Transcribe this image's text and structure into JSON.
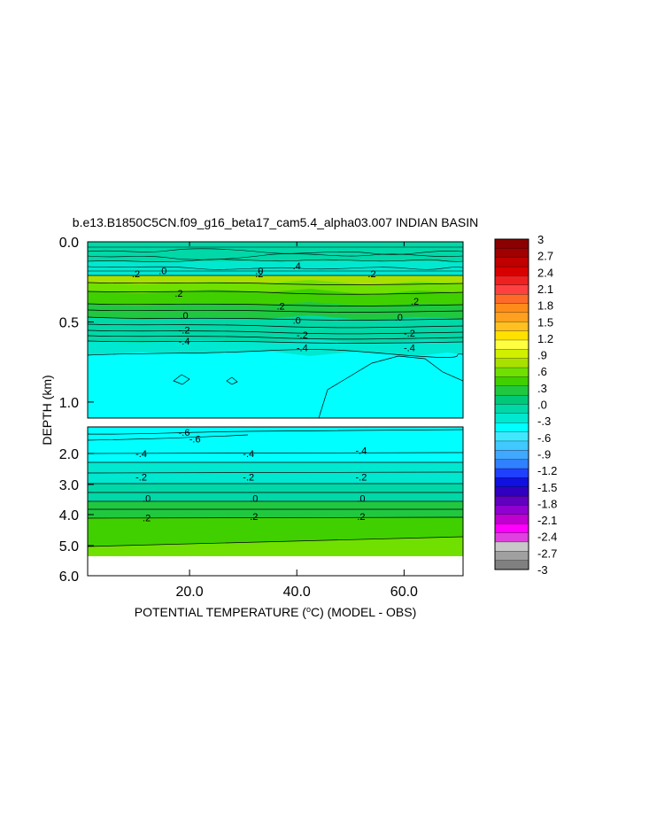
{
  "chart_data": {
    "type": "contour",
    "title": "b.e13.B1850C5CN.f09_g16_beta17_cam5.4_alpha03.007 INDIAN BASIN",
    "xlabel_main": "POTENTIAL TEMPERATURE (",
    "xlabel_sup": "o",
    "xlabel_rest": "C) (MODEL - OBS)",
    "ylabel": "DEPTH (km)",
    "xlim": [
      1,
      71
    ],
    "x_ticks": [
      "20.0",
      "40.0",
      "60.0"
    ],
    "x_tick_values": [
      20,
      40,
      60
    ],
    "upper_panel": {
      "depth_range": [
        0.0,
        1.1
      ],
      "y_ticks": [
        "0.0",
        "0.5",
        "1.0"
      ],
      "y_tick_values": [
        0.0,
        0.5,
        1.0
      ]
    },
    "lower_panel": {
      "depth_range": [
        1.1,
        6.0
      ],
      "y_ticks": [
        "2.0",
        "3.0",
        "4.0",
        "5.0",
        "6.0"
      ],
      "y_tick_values": [
        2.0,
        3.0,
        4.0,
        5.0,
        6.0
      ]
    },
    "contour_labels": [
      {
        "text": ".2",
        "x": 10,
        "depth": 0.2,
        "panel": "upper"
      },
      {
        "text": ".0",
        "x": 15,
        "depth": 0.18,
        "panel": "upper"
      },
      {
        "text": ".2",
        "x": 33,
        "depth": 0.2,
        "panel": "upper"
      },
      {
        "text": ".0",
        "x": 33,
        "depth": 0.18,
        "panel": "upper"
      },
      {
        "text": ".4",
        "x": 40,
        "depth": 0.15,
        "panel": "upper"
      },
      {
        "text": ".2",
        "x": 54,
        "depth": 0.2,
        "panel": "upper"
      },
      {
        "text": ".2",
        "x": 18,
        "depth": 0.32,
        "panel": "upper"
      },
      {
        "text": ".2",
        "x": 37,
        "depth": 0.4,
        "panel": "upper"
      },
      {
        "text": ".2",
        "x": 62,
        "depth": 0.37,
        "panel": "upper"
      },
      {
        "text": ".0",
        "x": 19,
        "depth": 0.46,
        "panel": "upper"
      },
      {
        "text": ".0",
        "x": 40,
        "depth": 0.49,
        "panel": "upper"
      },
      {
        "text": ".0",
        "x": 59,
        "depth": 0.47,
        "panel": "upper"
      },
      {
        "text": "-.2",
        "x": 19,
        "depth": 0.55,
        "panel": "upper"
      },
      {
        "text": "-.2",
        "x": 41,
        "depth": 0.58,
        "panel": "upper"
      },
      {
        "text": "-.2",
        "x": 61,
        "depth": 0.57,
        "panel": "upper"
      },
      {
        "text": "-.4",
        "x": 19,
        "depth": 0.62,
        "panel": "upper"
      },
      {
        "text": "-.4",
        "x": 41,
        "depth": 0.66,
        "panel": "upper"
      },
      {
        "text": "-.4",
        "x": 61,
        "depth": 0.66,
        "panel": "upper"
      },
      {
        "text": "-.6",
        "x": 19,
        "depth": 1.28,
        "panel": "lower"
      },
      {
        "text": "-.6",
        "x": 21,
        "depth": 1.5,
        "panel": "lower"
      },
      {
        "text": "-.4",
        "x": 11,
        "depth": 2.0,
        "panel": "lower"
      },
      {
        "text": "-.4",
        "x": 31,
        "depth": 2.0,
        "panel": "lower"
      },
      {
        "text": "-.4",
        "x": 52,
        "depth": 1.9,
        "panel": "lower"
      },
      {
        "text": "-.2",
        "x": 11,
        "depth": 2.75,
        "panel": "lower"
      },
      {
        "text": "-.2",
        "x": 31,
        "depth": 2.75,
        "panel": "lower"
      },
      {
        "text": "-.2",
        "x": 52,
        "depth": 2.75,
        "panel": "lower"
      },
      {
        "text": ".0",
        "x": 12,
        "depth": 3.45,
        "panel": "lower"
      },
      {
        "text": ".0",
        "x": 32,
        "depth": 3.45,
        "panel": "lower"
      },
      {
        "text": ".0",
        "x": 52,
        "depth": 3.45,
        "panel": "lower"
      },
      {
        "text": ".2",
        "x": 12,
        "depth": 4.1,
        "panel": "lower"
      },
      {
        "text": ".2",
        "x": 32,
        "depth": 4.05,
        "panel": "lower"
      },
      {
        "text": ".2",
        "x": 52,
        "depth": 4.05,
        "panel": "lower"
      }
    ],
    "colorbar": {
      "levels": [
        "3",
        "2.7",
        "2.4",
        "2.1",
        "1.8",
        "1.5",
        "1.2",
        ".9",
        ".6",
        ".3",
        ".0",
        "-.3",
        "-.6",
        "-.9",
        "-1.2",
        "-1.5",
        "-1.8",
        "-2.1",
        "-2.4",
        "-2.7",
        "-3"
      ],
      "colors": [
        "#8b0000",
        "#a00000",
        "#c00000",
        "#d80000",
        "#ee2020",
        "#ff4040",
        "#ff6a2a",
        "#ff8c1a",
        "#ffa020",
        "#ffc020",
        "#ffe000",
        "#ffff40",
        "#d0f000",
        "#a8e000",
        "#70e000",
        "#40d000",
        "#20c840",
        "#00c878",
        "#00d8a8",
        "#00e8d0",
        "#00ffff",
        "#40e8ff",
        "#40c8ff",
        "#40a8ff",
        "#3080ff",
        "#2040ff",
        "#1010e0",
        "#3000c0",
        "#6000c0",
        "#9000d0",
        "#c000d0",
        "#ff00ff",
        "#e040e0",
        "#c8c8c8",
        "#a0a0a0",
        "#808080"
      ]
    }
  }
}
